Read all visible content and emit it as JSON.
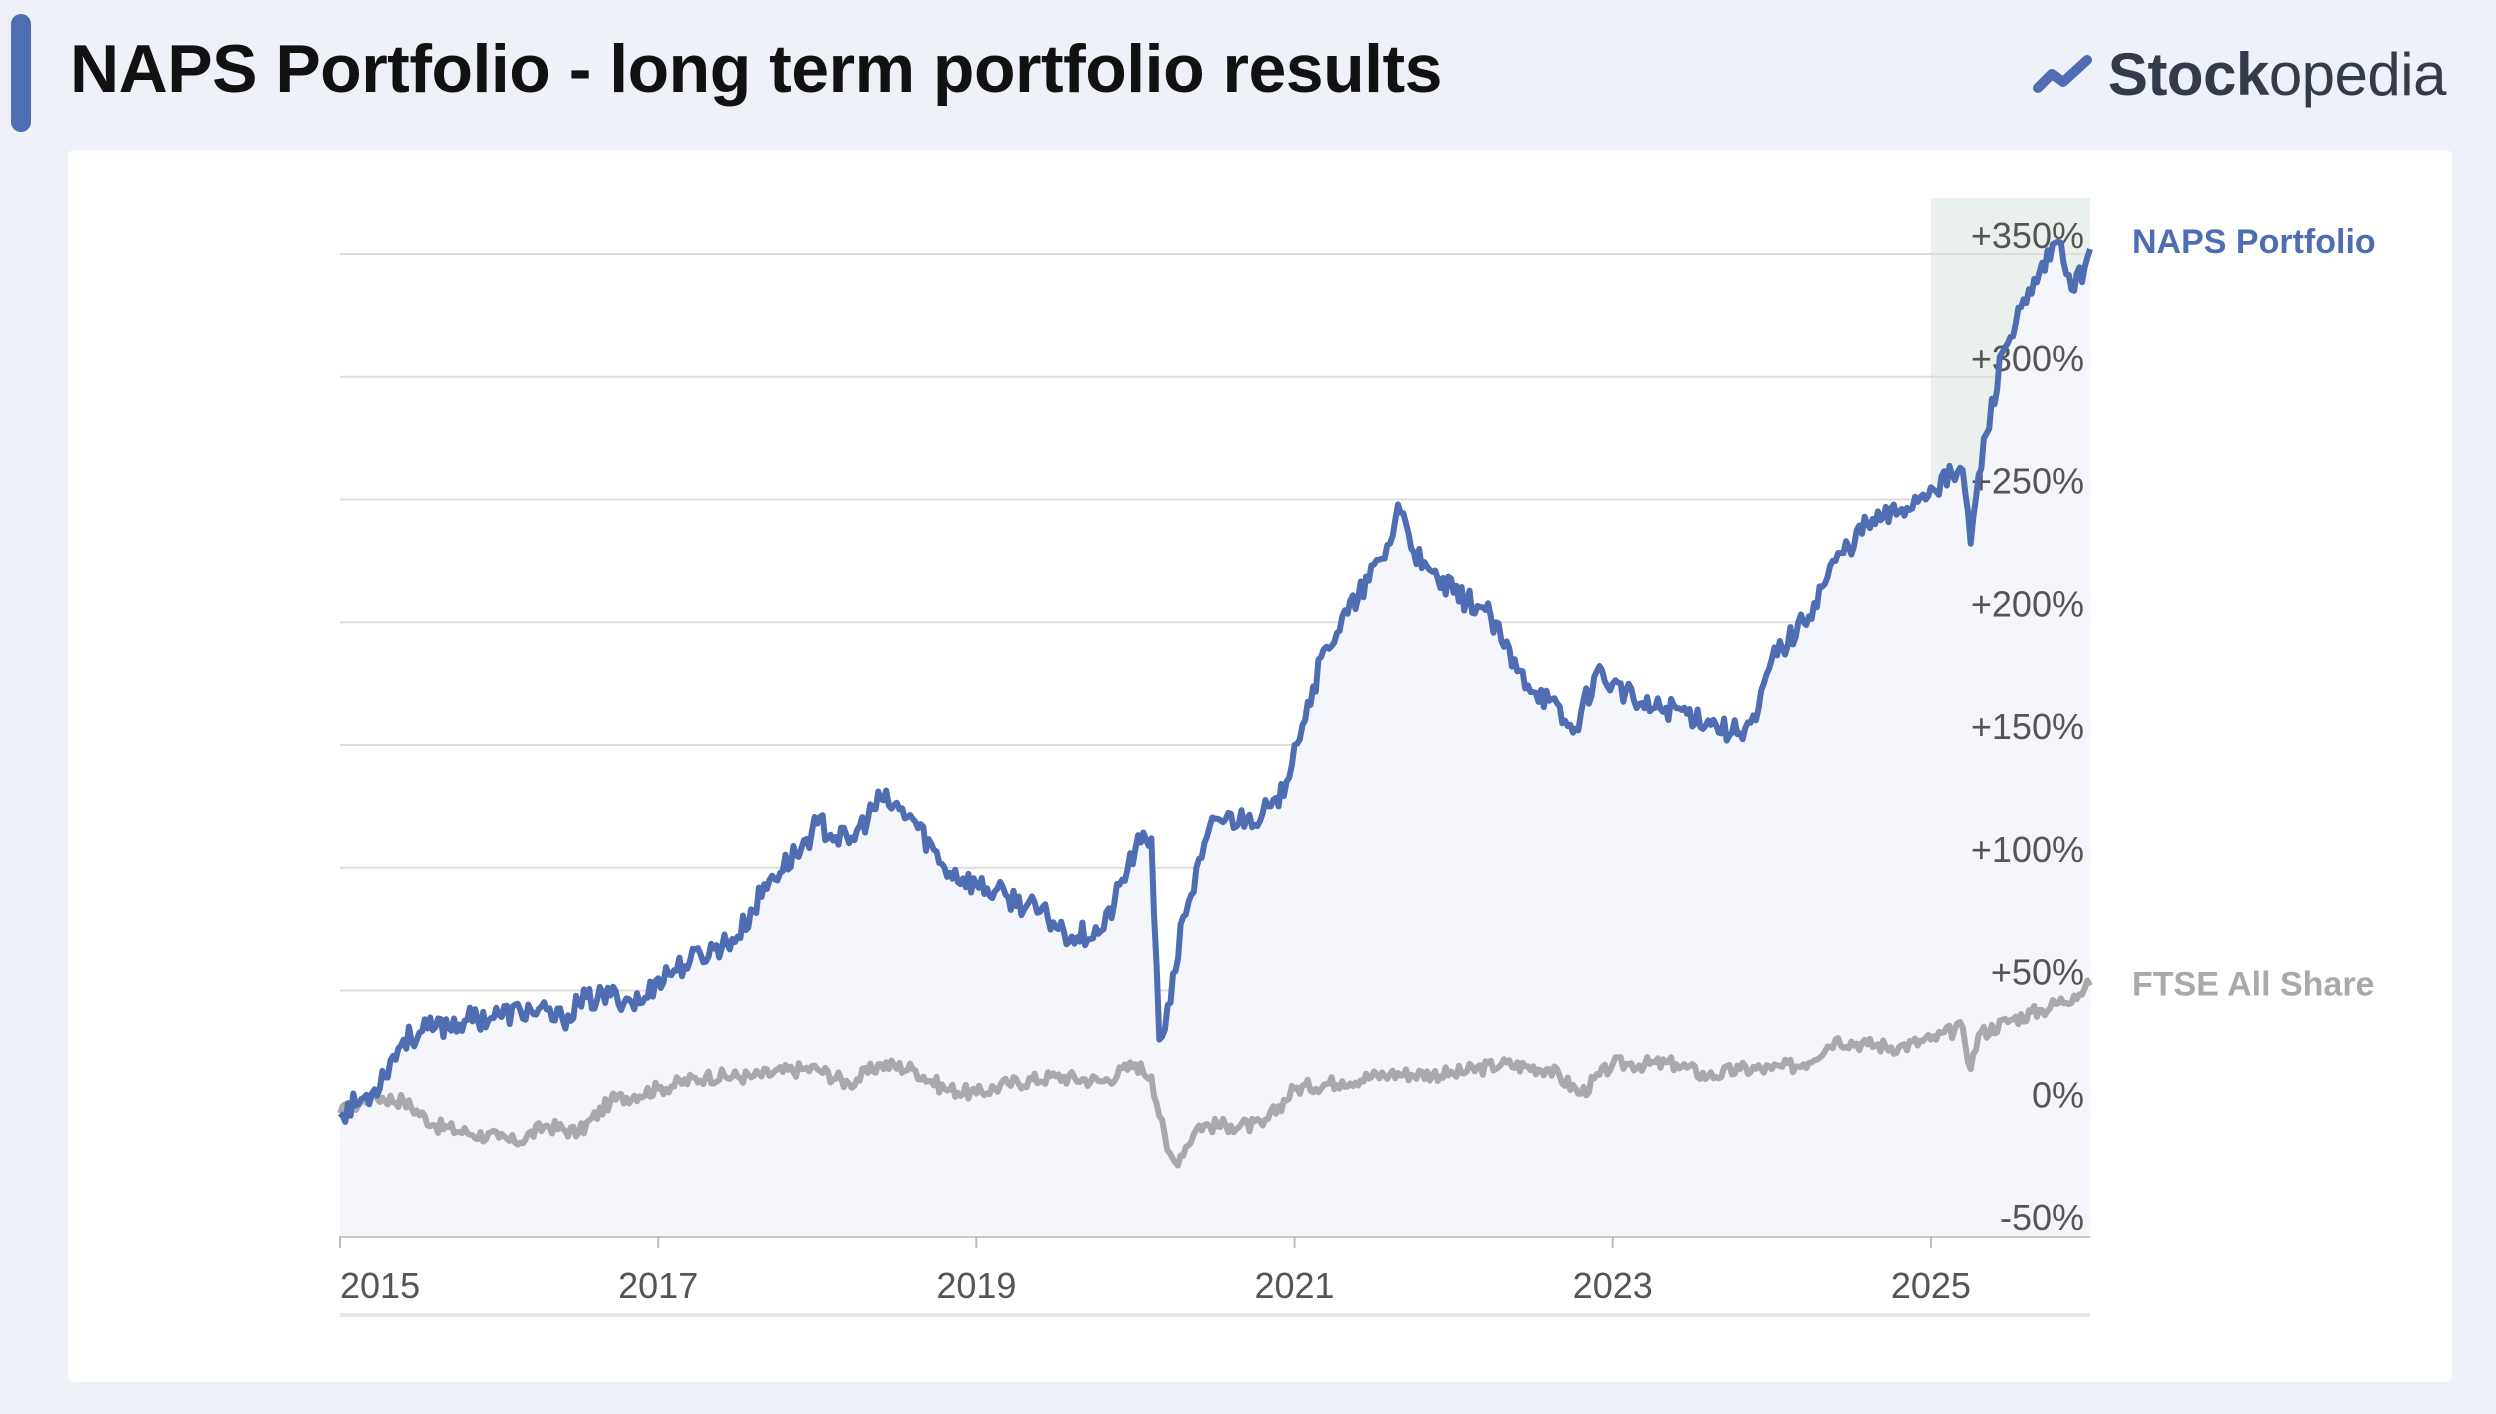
{
  "page": {
    "title": "NAPS Portfolio - long term portfolio results",
    "brand": {
      "name_bold": "Stock",
      "name_regular": "opedia",
      "icon": "stockopedia-chart-logo-icon",
      "color": "#4f6db3"
    }
  },
  "colors": {
    "background": "#eef1f8",
    "accent": "#4f6db3",
    "naps_line": "#4f6db3",
    "ftse_line": "#a9a9ab",
    "highlight_band": "#eaf0ec",
    "grid": "#dddddd"
  },
  "chart_data": {
    "type": "line",
    "title": "NAPS Portfolio - long term portfolio results",
    "xlabel": "",
    "ylabel": "",
    "x_range": [
      2015.0,
      2026.0
    ],
    "ylim": [
      -50,
      350
    ],
    "grid": true,
    "x_ticks": [
      2015,
      2017,
      2019,
      2021,
      2023,
      2025
    ],
    "x_tick_labels": [
      "2015",
      "2017",
      "2019",
      "2021",
      "2023",
      "2025"
    ],
    "y_ticks": [
      -50,
      0,
      50,
      100,
      150,
      200,
      250,
      300,
      350
    ],
    "y_tick_labels": [
      "-50%",
      "0%",
      "+50%",
      "+100%",
      "+150%",
      "+200%",
      "+250%",
      "+300%",
      "+350%"
    ],
    "highlight_range": [
      2025.0,
      2026.0
    ],
    "series": [
      {
        "name": "NAPS Portfolio",
        "color": "#4f6db3",
        "x": [
          2015.0,
          2015.2,
          2015.4,
          2015.6,
          2015.8,
          2016.0,
          2016.2,
          2016.4,
          2016.5,
          2016.7,
          2016.9,
          2017.0,
          2017.2,
          2017.5,
          2017.7,
          2017.9,
          2018.0,
          2018.2,
          2018.4,
          2018.6,
          2018.8,
          2019.0,
          2019.2,
          2019.4,
          2019.6,
          2019.8,
          2020.0,
          2020.1,
          2020.15,
          2020.22,
          2020.3,
          2020.5,
          2020.7,
          2020.9,
          2021.0,
          2021.2,
          2021.4,
          2021.6,
          2021.65,
          2021.8,
          2022.0,
          2022.2,
          2022.4,
          2022.6,
          2022.75,
          2022.9,
          2023.0,
          2023.2,
          2023.4,
          2023.6,
          2023.75,
          2023.9,
          2024.0,
          2024.2,
          2024.4,
          2024.6,
          2024.8,
          2025.0,
          2025.2,
          2025.25,
          2025.3,
          2025.45,
          2025.6,
          2025.8,
          2025.9,
          2026.0
        ],
        "values": [
          0,
          8,
          30,
          35,
          38,
          40,
          42,
          38,
          45,
          48,
          45,
          55,
          62,
          72,
          95,
          108,
          118,
          110,
          128,
          120,
          100,
          93,
          88,
          82,
          72,
          75,
          108,
          112,
          30,
          45,
          80,
          120,
          120,
          125,
          150,
          190,
          210,
          232,
          248,
          222,
          212,
          205,
          180,
          168,
          155,
          180,
          175,
          165,
          165,
          160,
          155,
          160,
          185,
          200,
          225,
          240,
          245,
          255,
          262,
          232,
          260,
          310,
          330,
          355,
          335,
          352
        ]
      },
      {
        "name": "FTSE All Share",
        "color": "#a9a9ab",
        "x": [
          2015.0,
          2015.2,
          2015.4,
          2015.6,
          2015.8,
          2016.0,
          2016.1,
          2016.3,
          2016.5,
          2016.7,
          2017.0,
          2017.3,
          2017.6,
          2017.9,
          2018.0,
          2018.2,
          2018.4,
          2018.6,
          2018.8,
          2019.0,
          2019.2,
          2019.5,
          2019.8,
          2020.0,
          2020.1,
          2020.2,
          2020.25,
          2020.4,
          2020.6,
          2020.8,
          2021.0,
          2021.3,
          2021.6,
          2022.0,
          2022.3,
          2022.6,
          2022.8,
          2023.0,
          2023.1,
          2023.4,
          2023.6,
          2023.8,
          2024.0,
          2024.2,
          2024.4,
          2024.6,
          2024.8,
          2025.0,
          2025.2,
          2025.25,
          2025.3,
          2025.5,
          2025.7,
          2025.9,
          2026.0
        ],
        "values": [
          0,
          7,
          5,
          -5,
          -8,
          -10,
          -12,
          -5,
          -8,
          5,
          10,
          15,
          15,
          18,
          18,
          12,
          20,
          18,
          10,
          8,
          12,
          15,
          13,
          20,
          15,
          -15,
          -20,
          -5,
          -5,
          -5,
          10,
          13,
          16,
          16,
          20,
          18,
          8,
          20,
          20,
          20,
          15,
          18,
          18,
          20,
          30,
          28,
          27,
          30,
          35,
          18,
          32,
          38,
          42,
          48,
          52
        ]
      }
    ],
    "legend": [
      {
        "label": "NAPS Portfolio",
        "color": "#4f6db3",
        "placement": "right, beside line end"
      },
      {
        "label": "FTSE All Share",
        "color": "#a9a9ab",
        "placement": "right, beside line end"
      }
    ]
  }
}
